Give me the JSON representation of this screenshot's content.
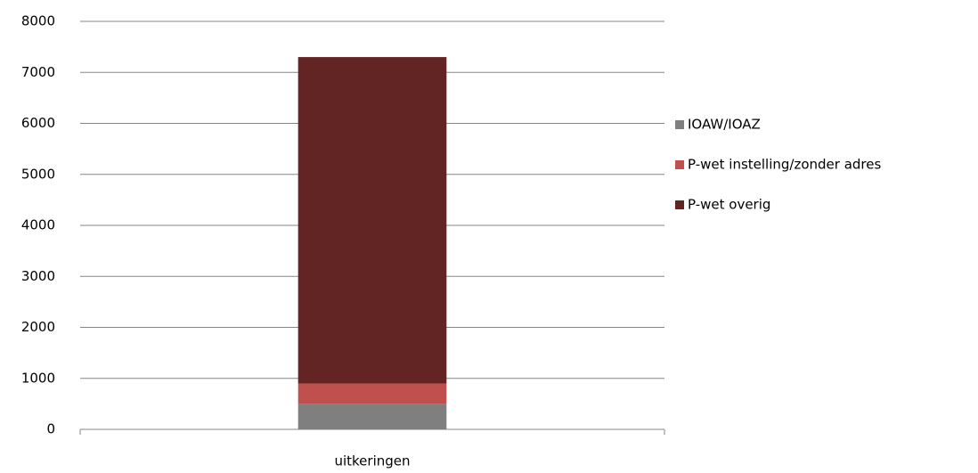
{
  "chart_data": {
    "type": "stacked_bar",
    "categories": [
      "uitkeringen"
    ],
    "series": [
      {
        "name": "IOAW/IOAZ",
        "color": "#7f7f7f",
        "values": [
          500
        ]
      },
      {
        "name": "P-wet instelling/zonder adres",
        "color": "#c0504d",
        "values": [
          400
        ]
      },
      {
        "name": "P-wet overig",
        "color": "#632523",
        "values": [
          6400
        ]
      }
    ],
    "ylim": [
      0,
      8000
    ],
    "yticks": [
      0,
      1000,
      2000,
      3000,
      4000,
      5000,
      6000,
      7000,
      8000
    ],
    "grid": true,
    "legend": "right"
  }
}
